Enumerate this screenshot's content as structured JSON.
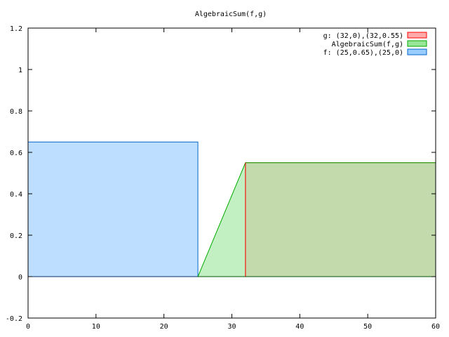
{
  "chart_data": {
    "type": "area",
    "title": "AlgebraicSum(f,g)",
    "xlabel": "",
    "ylabel": "",
    "xlim": [
      0,
      60
    ],
    "ylim": [
      -0.2,
      1.2
    ],
    "xticks": [
      "0",
      "10",
      "20",
      "30",
      "40",
      "50",
      "60"
    ],
    "yticks": [
      "-0.2",
      "0",
      "0.2",
      "0.4",
      "0.6",
      "0.8",
      "1",
      "1.2"
    ],
    "grid": false,
    "legend_position": "top-right",
    "series": [
      {
        "name": "g: (32,0),(32,0.55)",
        "points": [
          [
            32,
            0
          ],
          [
            32,
            0.55
          ],
          [
            60,
            0.55
          ],
          [
            60,
            0
          ]
        ],
        "fill": "#ffaaaa",
        "stroke": "#ff0000"
      },
      {
        "name": "AlgebraicSum(f,g)",
        "points": [
          [
            25,
            0
          ],
          [
            32,
            0.55
          ],
          [
            60,
            0.55
          ],
          [
            60,
            0
          ]
        ],
        "fill": "#99e699",
        "stroke": "#00aa00"
      },
      {
        "name": "f: (25,0.65),(25,0)",
        "points": [
          [
            0,
            0
          ],
          [
            0,
            0.65
          ],
          [
            25,
            0.65
          ],
          [
            25,
            0
          ]
        ],
        "fill": "#99ccff",
        "stroke": "#0066cc"
      }
    ]
  }
}
